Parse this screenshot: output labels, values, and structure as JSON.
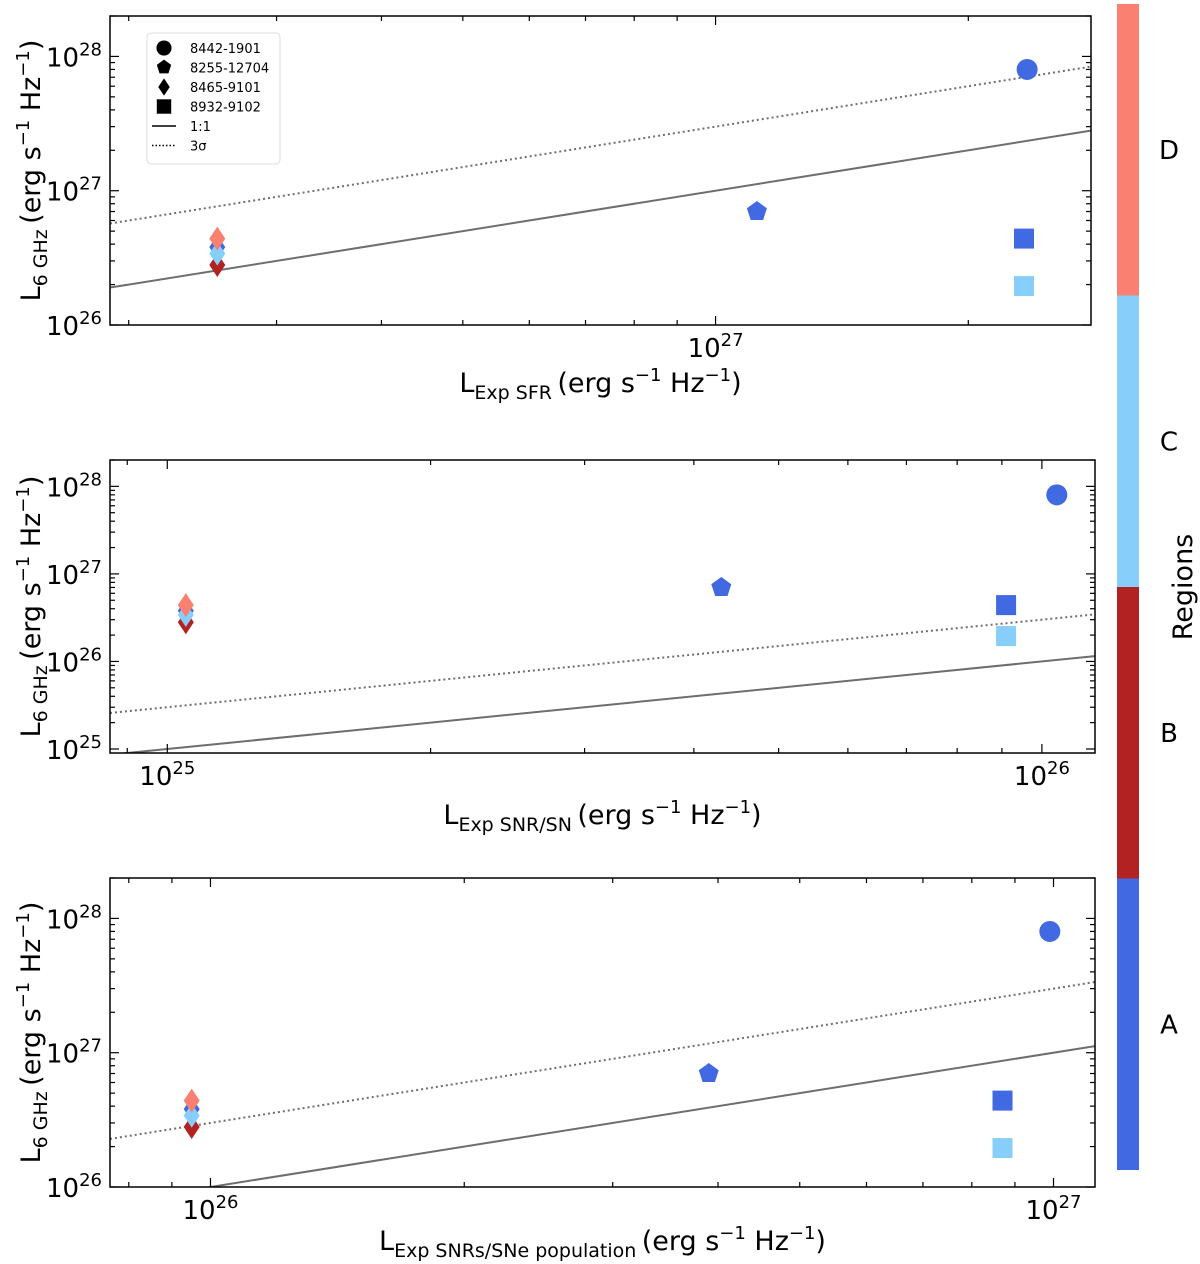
{
  "colors": {
    "A": "#4169e1",
    "B": "#b22222",
    "C": "#87cefa",
    "D": "#fa8072",
    "line": "#6e6e6e"
  },
  "legend": [
    {
      "label": "8442-1901",
      "marker": "circle"
    },
    {
      "label": "8255-12704",
      "marker": "pentagon"
    },
    {
      "label": "8465-9101",
      "marker": "diamond"
    },
    {
      "label": "8932-9102",
      "marker": "square"
    },
    {
      "label": "1:1",
      "line": "solid"
    },
    {
      "label": "3σ",
      "line": "dotted"
    }
  ],
  "colorbar": {
    "title": "Regions",
    "labels": [
      "A",
      "B",
      "C",
      "D"
    ]
  },
  "chart_data": [
    {
      "type": "scatter",
      "xscale": "log",
      "yscale": "log",
      "xlabel_main": "L",
      "xlabel_sub": "Exp SFR",
      "xlabel_units": "(erg s",
      "ylabel_main": "L",
      "ylabel_sub": "6 GHz",
      "ylabel_units": "(erg s",
      "xlim": [
        1.9e+26,
        2.8e+27
      ],
      "ylim": [
        1e+26,
        2e+28
      ],
      "xticks_major": [
        {
          "value": 1e+27,
          "base": "10",
          "exp": "27"
        }
      ],
      "yticks_major": [
        {
          "value": 1e+26,
          "base": "10",
          "exp": "26"
        },
        {
          "value": 1e+27,
          "base": "10",
          "exp": "27"
        },
        {
          "value": 1e+28,
          "base": "10",
          "exp": "28"
        }
      ],
      "one_to_one_factor": 1.0,
      "three_sigma_factor": 3.0,
      "points": [
        {
          "source": "8442-1901",
          "marker": "circle",
          "region": "A",
          "x": 2.35e+27,
          "y": 8e+27
        },
        {
          "source": "8255-12704",
          "marker": "pentagon",
          "region": "A",
          "x": 1.12e+27,
          "y": 7e+26
        },
        {
          "source": "8465-9101",
          "marker": "diamond",
          "region": "B",
          "x": 2.55e+26,
          "y": 2.8e+26
        },
        {
          "source": "8465-9101",
          "marker": "diamond",
          "region": "A",
          "x": 2.55e+26,
          "y": 3.8e+26
        },
        {
          "source": "8465-9101",
          "marker": "diamond",
          "region": "C",
          "x": 2.55e+26,
          "y": 3.4e+26
        },
        {
          "source": "8465-9101",
          "marker": "diamond",
          "region": "D",
          "x": 2.55e+26,
          "y": 4.4e+26
        },
        {
          "source": "8932-9102",
          "marker": "square",
          "region": "A",
          "x": 2.33e+27,
          "y": 4.4e+26
        },
        {
          "source": "8932-9102",
          "marker": "square",
          "region": "C",
          "x": 2.33e+27,
          "y": 1.95e+26
        }
      ]
    },
    {
      "type": "scatter",
      "xscale": "log",
      "yscale": "log",
      "xlabel_main": "L",
      "xlabel_sub": "Exp SNR/SN",
      "xlabel_units": "(erg s",
      "ylabel_main": "L",
      "ylabel_sub": "6 GHz",
      "ylabel_units": "(erg s",
      "xlim": [
        8.6e+24,
        1.15e+26
      ],
      "ylim": [
        9e+24,
        2e+28
      ],
      "xticks_major": [
        {
          "value": 1e+25,
          "base": "10",
          "exp": "25"
        },
        {
          "value": 1e+26,
          "base": "10",
          "exp": "26"
        }
      ],
      "yticks_major": [
        {
          "value": 1e+25,
          "base": "10",
          "exp": "25"
        },
        {
          "value": 1e+26,
          "base": "10",
          "exp": "26"
        },
        {
          "value": 1e+27,
          "base": "10",
          "exp": "27"
        },
        {
          "value": 1e+28,
          "base": "10",
          "exp": "28"
        }
      ],
      "one_to_one_factor": 1.0,
      "three_sigma_factor": 3.0,
      "points": [
        {
          "source": "8442-1901",
          "marker": "circle",
          "region": "A",
          "x": 1.04e+26,
          "y": 8e+27
        },
        {
          "source": "8255-12704",
          "marker": "pentagon",
          "region": "A",
          "x": 4.3e+25,
          "y": 7e+26
        },
        {
          "source": "8465-9101",
          "marker": "diamond",
          "region": "B",
          "x": 1.05e+25,
          "y": 2.8e+26
        },
        {
          "source": "8465-9101",
          "marker": "diamond",
          "region": "A",
          "x": 1.05e+25,
          "y": 3.8e+26
        },
        {
          "source": "8465-9101",
          "marker": "diamond",
          "region": "C",
          "x": 1.05e+25,
          "y": 3.4e+26
        },
        {
          "source": "8465-9101",
          "marker": "diamond",
          "region": "D",
          "x": 1.05e+25,
          "y": 4.4e+26
        },
        {
          "source": "8932-9102",
          "marker": "square",
          "region": "A",
          "x": 9.1e+25,
          "y": 4.4e+26
        },
        {
          "source": "8932-9102",
          "marker": "square",
          "region": "C",
          "x": 9.1e+25,
          "y": 1.95e+26
        }
      ]
    },
    {
      "type": "scatter",
      "xscale": "log",
      "yscale": "log",
      "xlabel_main": "L",
      "xlabel_sub": "Exp SNRs/SNe population",
      "xlabel_units": "(erg s",
      "ylabel_main": "L",
      "ylabel_sub": "6 GHz",
      "ylabel_units": "(erg s",
      "xlim": [
        7.6e+25,
        1.12e+27
      ],
      "ylim": [
        1e+26,
        2e+28
      ],
      "xticks_major": [
        {
          "value": 1e+26,
          "base": "10",
          "exp": "26"
        },
        {
          "value": 1e+27,
          "base": "10",
          "exp": "27"
        }
      ],
      "yticks_major": [
        {
          "value": 1e+26,
          "base": "10",
          "exp": "26"
        },
        {
          "value": 1e+27,
          "base": "10",
          "exp": "27"
        },
        {
          "value": 1e+28,
          "base": "10",
          "exp": "28"
        }
      ],
      "one_to_one_factor": 1.0,
      "three_sigma_factor": 3.0,
      "points": [
        {
          "source": "8442-1901",
          "marker": "circle",
          "region": "A",
          "x": 9.9e+26,
          "y": 8e+27
        },
        {
          "source": "8255-12704",
          "marker": "pentagon",
          "region": "A",
          "x": 3.9e+26,
          "y": 7e+26
        },
        {
          "source": "8465-9101",
          "marker": "diamond",
          "region": "B",
          "x": 9.5e+25,
          "y": 2.8e+26
        },
        {
          "source": "8465-9101",
          "marker": "diamond",
          "region": "A",
          "x": 9.5e+25,
          "y": 3.8e+26
        },
        {
          "source": "8465-9101",
          "marker": "diamond",
          "region": "C",
          "x": 9.5e+25,
          "y": 3.4e+26
        },
        {
          "source": "8465-9101",
          "marker": "diamond",
          "region": "D",
          "x": 9.5e+25,
          "y": 4.4e+26
        },
        {
          "source": "8932-9102",
          "marker": "square",
          "region": "A",
          "x": 8.7e+26,
          "y": 4.4e+26
        },
        {
          "source": "8932-9102",
          "marker": "square",
          "region": "C",
          "x": 8.7e+26,
          "y": 1.95e+26
        }
      ]
    }
  ]
}
